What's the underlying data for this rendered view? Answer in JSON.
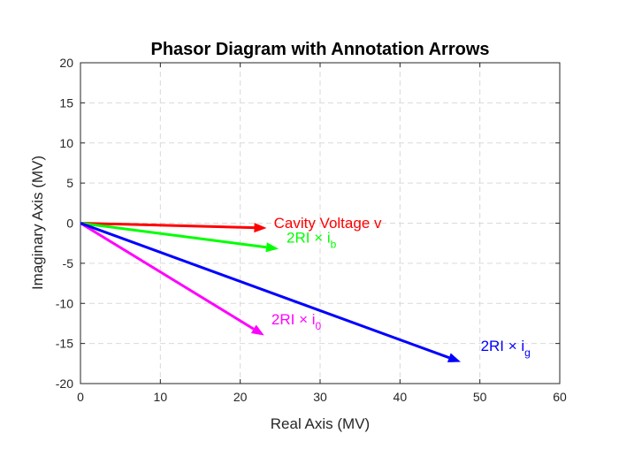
{
  "chart_data": {
    "type": "line",
    "title": "Phasor Diagram with Annotation Arrows",
    "xlabel": "Real Axis (MV)",
    "ylabel": "Imaginary Axis (MV)",
    "xlim": [
      0,
      60
    ],
    "ylim": [
      -20,
      20
    ],
    "xticks": [
      "0",
      "10",
      "20",
      "30",
      "40",
      "50",
      "60"
    ],
    "yticks": [
      "20",
      "15",
      "10",
      "5",
      "0",
      "-5",
      "-10",
      "-15",
      "-20"
    ],
    "grid": true,
    "series": [
      {
        "key": "cavity",
        "color": "#ff0000",
        "start": [
          0,
          0
        ],
        "end": [
          23.3,
          -0.6
        ],
        "label": "Cavity Voltage v",
        "label_sub": "",
        "label_at": [
          24.2,
          -0.6
        ]
      },
      {
        "key": "ib",
        "color": "#00ff00",
        "start": [
          0,
          0
        ],
        "end": [
          24.8,
          -3.2
        ],
        "label": "2RI × i",
        "label_sub": "b",
        "label_at": [
          25.8,
          -2.4
        ]
      },
      {
        "key": "i0",
        "color": "#ff00ff",
        "start": [
          0,
          0
        ],
        "end": [
          23.0,
          -14.0
        ],
        "label": "2RI × i",
        "label_sub": "0",
        "label_at": [
          23.9,
          -12.6
        ]
      },
      {
        "key": "ig",
        "color": "#0000ff",
        "start": [
          0,
          0
        ],
        "end": [
          47.6,
          -17.3
        ],
        "label": "2RI × i",
        "label_sub": "g",
        "label_at": [
          50.1,
          -15.9
        ]
      }
    ]
  }
}
